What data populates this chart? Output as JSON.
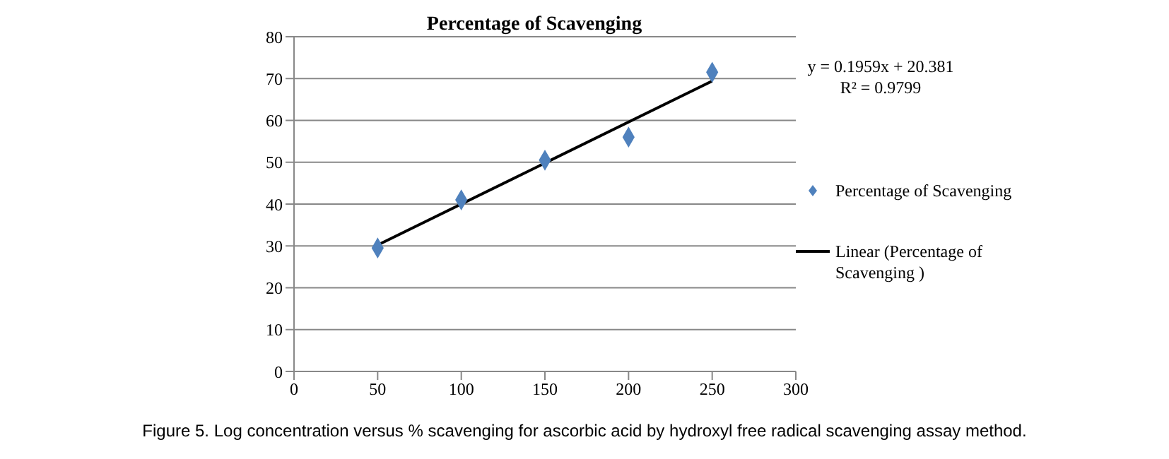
{
  "chart_data": {
    "type": "scatter",
    "title": "Percentage of Scavenging",
    "xlim": [
      0,
      300
    ],
    "xticks": [
      0,
      50,
      100,
      150,
      200,
      250,
      300
    ],
    "ylim": [
      0,
      80
    ],
    "yticks": [
      0,
      10,
      20,
      30,
      40,
      50,
      60,
      70,
      80
    ],
    "grid": "y",
    "legend": "right",
    "series": [
      {
        "name": "Percentage of Scavenging",
        "marker": "diamond",
        "color": "#4f81bd",
        "x": [
          50,
          100,
          150,
          200,
          250
        ],
        "values": [
          29.5,
          41,
          50.5,
          56,
          71.5
        ]
      },
      {
        "name": "Linear (Percentage of Scavenging )",
        "type": "line",
        "color": "#000000",
        "x": [
          50,
          250
        ],
        "values": [
          30.2,
          69.4
        ]
      }
    ],
    "annotations": [
      "y = 0.1959x + 20.381",
      "R² = 0.9799",
      "Figure 5. Log concentration versus % scavenging for ascorbic acid by hydroxyl free radical scavenging assay method."
    ]
  }
}
